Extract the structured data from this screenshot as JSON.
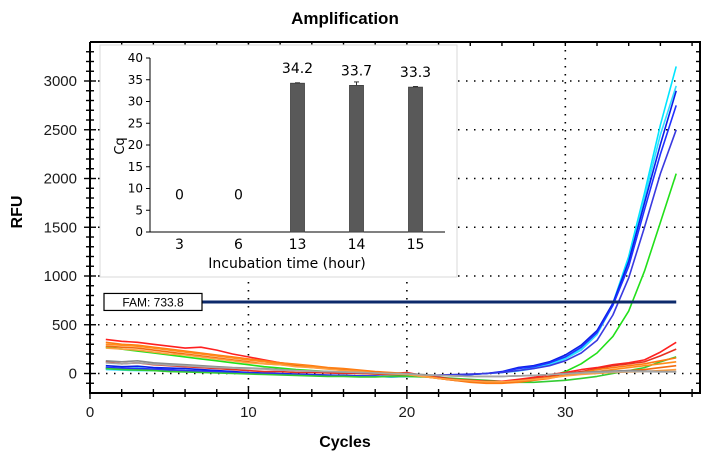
{
  "chart_data": [
    {
      "type": "line",
      "title": "Amplification",
      "xlabel": "Cycles",
      "ylabel": "RFU",
      "xlim": [
        0,
        38.5
      ],
      "ylim": [
        -200,
        3400
      ],
      "xticks": [
        0,
        10,
        20,
        30
      ],
      "yticks": [
        0,
        500,
        1000,
        1500,
        2000,
        2500,
        3000
      ],
      "grid": true,
      "threshold": {
        "label": "FAM: 733.8",
        "value": 733.8,
        "color": "#0d2a6b"
      },
      "x": [
        1,
        2,
        3,
        4,
        5,
        6,
        7,
        8,
        9,
        10,
        11,
        12,
        13,
        14,
        15,
        16,
        17,
        18,
        19,
        20,
        21,
        22,
        23,
        24,
        25,
        26,
        27,
        28,
        29,
        30,
        31,
        32,
        33,
        34,
        35,
        36,
        37
      ],
      "series": [
        {
          "name": "cyan-1",
          "color": "#00e5ff",
          "values": [
            60,
            50,
            55,
            40,
            35,
            30,
            25,
            20,
            10,
            5,
            0,
            -5,
            -10,
            -15,
            -20,
            -20,
            -25,
            -30,
            -35,
            -30,
            -25,
            -20,
            -15,
            -10,
            0,
            10,
            30,
            60,
            100,
            160,
            260,
            420,
            720,
            1200,
            1850,
            2550,
            3150
          ]
        },
        {
          "name": "cyan-2",
          "color": "#33ddff",
          "values": [
            40,
            35,
            30,
            30,
            25,
            20,
            15,
            10,
            5,
            0,
            -5,
            -10,
            -15,
            -20,
            -25,
            -25,
            -30,
            -30,
            -35,
            -30,
            -25,
            -20,
            -15,
            -10,
            0,
            10,
            25,
            50,
            90,
            150,
            240,
            400,
            700,
            1150,
            1800,
            2450,
            2950
          ]
        },
        {
          "name": "blue-1",
          "color": "#0a1fe6",
          "values": [
            80,
            70,
            75,
            60,
            55,
            50,
            40,
            30,
            20,
            10,
            5,
            0,
            -5,
            -10,
            -15,
            -20,
            -25,
            -25,
            -30,
            -25,
            -20,
            -20,
            -15,
            -10,
            0,
            20,
            60,
            80,
            120,
            190,
            290,
            440,
            720,
            1150,
            1750,
            2350,
            2900
          ]
        },
        {
          "name": "blue-2",
          "color": "#2030ff",
          "values": [
            60,
            55,
            50,
            45,
            40,
            30,
            25,
            20,
            10,
            5,
            0,
            -5,
            -10,
            -15,
            -20,
            -25,
            -25,
            -30,
            -30,
            -30,
            -25,
            -20,
            -15,
            -10,
            0,
            15,
            50,
            70,
            110,
            170,
            270,
            420,
            700,
            1100,
            1680,
            2250,
            2750
          ]
        },
        {
          "name": "blue-3",
          "color": "#3a3ae0",
          "values": [
            50,
            45,
            40,
            35,
            30,
            25,
            20,
            10,
            5,
            0,
            -5,
            -10,
            -15,
            -20,
            -20,
            -25,
            -30,
            -30,
            -30,
            -25,
            -20,
            -15,
            -10,
            -5,
            0,
            10,
            30,
            50,
            80,
            130,
            210,
            340,
            600,
            980,
            1500,
            2050,
            2500
          ]
        },
        {
          "name": "green-1",
          "color": "#22e01a",
          "values": [
            270,
            250,
            230,
            210,
            190,
            170,
            150,
            130,
            110,
            90,
            70,
            55,
            40,
            30,
            20,
            10,
            0,
            -5,
            -10,
            -15,
            -25,
            -40,
            -55,
            -70,
            -80,
            -85,
            -80,
            -60,
            -30,
            20,
            100,
            210,
            380,
            640,
            1050,
            1550,
            2050
          ]
        },
        {
          "name": "green-2",
          "color": "#33cc33",
          "values": [
            50,
            40,
            35,
            30,
            20,
            15,
            10,
            5,
            0,
            -5,
            -10,
            -15,
            -20,
            -25,
            -30,
            -30,
            -35,
            -35,
            -30,
            -30,
            -35,
            -40,
            -50,
            -60,
            -70,
            -80,
            -90,
            -90,
            -80,
            -70,
            -50,
            -30,
            0,
            30,
            60,
            120,
            170
          ]
        },
        {
          "name": "red-1",
          "color": "#ff2020",
          "values": [
            350,
            330,
            320,
            300,
            280,
            260,
            270,
            240,
            200,
            170,
            140,
            110,
            90,
            70,
            50,
            40,
            20,
            10,
            0,
            10,
            -20,
            -40,
            -60,
            -70,
            -80,
            -80,
            -60,
            -40,
            -10,
            10,
            40,
            60,
            90,
            110,
            140,
            220,
            320
          ]
        },
        {
          "name": "red-2",
          "color": "#e63020",
          "values": [
            120,
            100,
            110,
            90,
            80,
            70,
            60,
            50,
            40,
            30,
            20,
            20,
            10,
            10,
            5,
            0,
            0,
            -5,
            -10,
            -10,
            -20,
            -40,
            -60,
            -80,
            -90,
            -90,
            -70,
            -50,
            -30,
            0,
            20,
            50,
            80,
            100,
            120,
            180,
            250
          ]
        },
        {
          "name": "orange-1",
          "color": "#ff7a10",
          "values": [
            320,
            300,
            290,
            270,
            250,
            230,
            210,
            190,
            170,
            150,
            130,
            110,
            95,
            80,
            60,
            50,
            35,
            20,
            10,
            0,
            -20,
            -50,
            -70,
            -90,
            -100,
            -100,
            -90,
            -70,
            -50,
            -20,
            10,
            40,
            60,
            80,
            100,
            130,
            160
          ]
        },
        {
          "name": "orange-2",
          "color": "#ff8c1a",
          "values": [
            300,
            290,
            280,
            260,
            240,
            220,
            200,
            180,
            160,
            140,
            120,
            100,
            90,
            70,
            55,
            40,
            25,
            10,
            0,
            -10,
            -30,
            -50,
            -70,
            -80,
            -90,
            -90,
            -80,
            -60,
            -40,
            -20,
            0,
            20,
            40,
            60,
            80,
            100,
            120
          ]
        },
        {
          "name": "orange-3",
          "color": "#f26b10",
          "values": [
            280,
            270,
            260,
            240,
            220,
            200,
            180,
            160,
            140,
            120,
            100,
            90,
            80,
            60,
            50,
            35,
            20,
            10,
            0,
            -10,
            -30,
            -50,
            -70,
            -80,
            -90,
            -90,
            -80,
            -60,
            -40,
            -20,
            0,
            10,
            20,
            30,
            40,
            60,
            80
          ]
        },
        {
          "name": "orange-4",
          "color": "#ffa040",
          "values": [
            260,
            250,
            240,
            220,
            200,
            190,
            170,
            150,
            130,
            110,
            100,
            90,
            70,
            60,
            45,
            30,
            20,
            5,
            -5,
            -10,
            -30,
            -50,
            -65,
            -75,
            -85,
            -85,
            -75,
            -60,
            -45,
            -25,
            -10,
            0,
            10,
            15,
            20,
            30,
            40
          ]
        },
        {
          "name": "gray-1",
          "color": "#8a8a8a",
          "values": [
            130,
            120,
            130,
            110,
            100,
            90,
            80,
            70,
            60,
            55,
            50,
            40,
            30,
            25,
            20,
            15,
            10,
            5,
            0,
            0,
            -10,
            -20,
            -25,
            -30,
            -30,
            -30,
            -25,
            -20,
            -10,
            0,
            10,
            20,
            25,
            30,
            25,
            20,
            20
          ]
        },
        {
          "name": "gray-2",
          "color": "#a5a5a5",
          "values": [
            110,
            100,
            110,
            95,
            85,
            80,
            70,
            60,
            55,
            50,
            45,
            35,
            30,
            25,
            20,
            15,
            10,
            5,
            0,
            -5,
            -15,
            -20,
            -25,
            -30,
            -30,
            -30,
            -25,
            -20,
            -10,
            -5,
            5,
            10,
            15,
            20,
            20,
            15,
            15
          ]
        }
      ]
    },
    {
      "type": "bar",
      "xlabel": "Incubation time (hour)",
      "ylabel": "Cq",
      "ylim": [
        0,
        40
      ],
      "yticks": [
        0,
        5,
        10,
        15,
        20,
        25,
        30,
        35,
        40
      ],
      "categories": [
        "3",
        "6",
        "13",
        "14",
        "15"
      ],
      "values": [
        0,
        0,
        34.2,
        33.7,
        33.3
      ],
      "value_labels": [
        "0",
        "0",
        "34.2",
        "33.7",
        "33.3"
      ],
      "error": [
        0,
        0,
        0.1,
        0.8,
        0.15
      ],
      "bar_color": "#595959"
    }
  ]
}
